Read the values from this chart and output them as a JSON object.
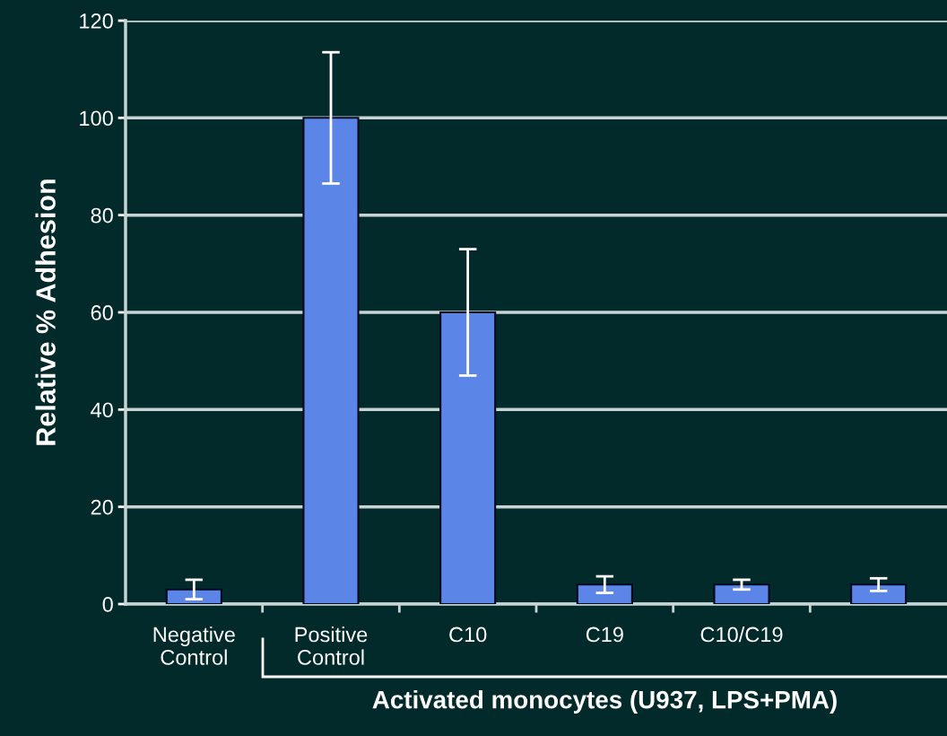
{
  "chart_data": {
    "type": "bar",
    "ylabel": "Relative % Adhesion",
    "xlabel": "Activated monocytes (U937, LPS+PMA)",
    "categories": [
      "Negative\nControl",
      "Positive\nControl",
      "C10",
      "C19",
      "C10/C19",
      null
    ],
    "values": [
      3,
      100,
      60,
      4,
      4,
      4
    ],
    "errors": [
      2,
      13.5,
      13,
      1.7,
      1,
      1.3
    ],
    "color": "#5b86e8",
    "ylim": [
      0,
      120
    ],
    "yticks": [
      0,
      20,
      40,
      60,
      80,
      100,
      120
    ],
    "grid": "y"
  }
}
